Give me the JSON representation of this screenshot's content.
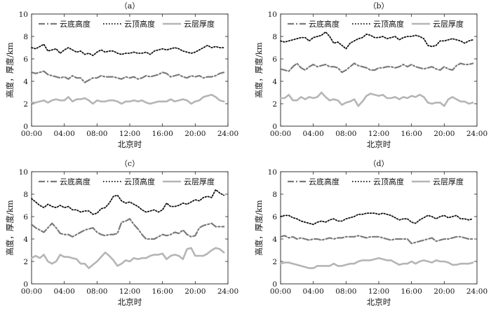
{
  "chart_data": [
    {
      "type": "line",
      "title": "（a）",
      "xlabel": "北京时",
      "ylabel": "高度，厚度/km",
      "ylim": [
        0,
        10
      ],
      "yticks": [
        "0",
        "2",
        "4",
        "6",
        "8",
        "10"
      ],
      "xlim": [
        "00:00",
        "24:00"
      ],
      "xticks": [
        "00:00",
        "04:00",
        "08:00",
        "12:00",
        "16:00",
        "20:00",
        "24:00"
      ],
      "grid": false,
      "legend_position": "top",
      "x": [
        "00:00",
        "00:30",
        "01:00",
        "01:30",
        "02:00",
        "02:30",
        "03:00",
        "03:30",
        "04:00",
        "04:30",
        "05:00",
        "05:30",
        "06:00",
        "06:30",
        "07:00",
        "07:30",
        "08:00",
        "08:30",
        "09:00",
        "09:30",
        "10:00",
        "10:30",
        "11:00",
        "11:30",
        "12:00",
        "12:30",
        "13:00",
        "13:30",
        "14:00",
        "14:30",
        "15:00",
        "15:30",
        "16:00",
        "16:30",
        "17:00",
        "17:30",
        "18:00",
        "18:30",
        "19:00",
        "19:30",
        "20:00",
        "20:30",
        "21:00",
        "21:30",
        "22:00",
        "22:30",
        "23:00",
        "23:30"
      ],
      "series": [
        {
          "name": "云底高度",
          "values": [
            4.8,
            4.7,
            4.8,
            4.9,
            4.6,
            4.5,
            4.4,
            4.3,
            4.4,
            4.2,
            4.5,
            4.3,
            4.3,
            3.9,
            4.1,
            4.3,
            4.3,
            4.5,
            4.4,
            4.4,
            4.4,
            4.3,
            4.2,
            4.4,
            4.3,
            4.4,
            4.2,
            4.3,
            4.5,
            4.4,
            4.5,
            4.6,
            4.8,
            4.7,
            4.4,
            4.5,
            4.6,
            4.4,
            4.3,
            4.5,
            4.4,
            4.5,
            4.3,
            4.4,
            4.4,
            4.5,
            4.7,
            4.8
          ]
        },
        {
          "name": "云顶高度",
          "values": [
            7.0,
            6.9,
            7.1,
            7.3,
            6.7,
            6.8,
            6.9,
            6.5,
            6.8,
            7.0,
            6.8,
            6.6,
            6.7,
            6.4,
            6.5,
            6.3,
            6.6,
            6.8,
            6.6,
            6.7,
            6.7,
            6.5,
            6.4,
            6.5,
            6.5,
            6.6,
            6.5,
            6.5,
            6.6,
            6.4,
            6.7,
            6.8,
            6.9,
            6.8,
            6.9,
            7.0,
            6.9,
            6.7,
            6.6,
            6.5,
            6.6,
            6.8,
            7.0,
            7.2,
            7.0,
            7.1,
            7.0,
            7.0
          ]
        },
        {
          "name": "云层厚度",
          "values": [
            2.1,
            2.1,
            2.2,
            2.3,
            2.1,
            2.3,
            2.4,
            2.3,
            2.3,
            2.6,
            2.2,
            2.4,
            2.4,
            2.5,
            2.3,
            2.0,
            2.3,
            2.2,
            2.2,
            2.3,
            2.3,
            2.2,
            2.0,
            2.2,
            2.2,
            2.3,
            2.2,
            2.3,
            2.1,
            2.0,
            2.1,
            2.2,
            2.2,
            2.2,
            2.4,
            2.2,
            2.3,
            2.4,
            2.3,
            2.0,
            2.2,
            2.3,
            2.6,
            2.7,
            2.8,
            2.6,
            2.3,
            2.2
          ]
        }
      ]
    },
    {
      "type": "line",
      "title": "（b）",
      "xlabel": "北京时",
      "ylabel": "高度，厚度/km",
      "ylim": [
        0,
        10
      ],
      "yticks": [
        "0",
        "2",
        "4",
        "6",
        "8",
        "10"
      ],
      "xlim": [
        "00:00",
        "24:00"
      ],
      "xticks": [
        "00:00",
        "04:00",
        "08:00",
        "12:00",
        "16:00",
        "20:00",
        "24:00"
      ],
      "grid": false,
      "legend_position": "top",
      "x": [
        "00:00",
        "00:30",
        "01:00",
        "01:30",
        "02:00",
        "02:30",
        "03:00",
        "03:30",
        "04:00",
        "04:30",
        "05:00",
        "05:30",
        "06:00",
        "06:30",
        "07:00",
        "07:30",
        "08:00",
        "08:30",
        "09:00",
        "09:30",
        "10:00",
        "10:30",
        "11:00",
        "11:30",
        "12:00",
        "12:30",
        "13:00",
        "13:30",
        "14:00",
        "14:30",
        "15:00",
        "15:30",
        "16:00",
        "16:30",
        "17:00",
        "17:30",
        "18:00",
        "18:30",
        "19:00",
        "19:30",
        "20:00",
        "20:30",
        "21:00",
        "21:30",
        "22:00",
        "22:30",
        "23:00",
        "23:30"
      ],
      "series": [
        {
          "name": "云底高度",
          "values": [
            5.1,
            5.0,
            4.9,
            5.3,
            5.6,
            5.2,
            5.0,
            5.3,
            5.5,
            5.3,
            5.4,
            5.5,
            5.3,
            5.3,
            5.2,
            4.8,
            5.0,
            5.3,
            5.6,
            5.4,
            5.3,
            5.2,
            5.0,
            5.0,
            5.2,
            5.2,
            5.3,
            5.3,
            5.2,
            5.3,
            5.5,
            5.3,
            5.5,
            5.3,
            5.2,
            5.1,
            5.2,
            5.3,
            5.1,
            5.0,
            5.3,
            5.1,
            5.0,
            5.4,
            5.6,
            5.5,
            5.5,
            5.6
          ]
        },
        {
          "name": "云顶高度",
          "values": [
            7.6,
            7.5,
            7.6,
            7.7,
            7.8,
            7.9,
            7.9,
            7.6,
            7.9,
            8.0,
            8.1,
            8.4,
            8.0,
            7.4,
            7.5,
            7.2,
            6.9,
            7.4,
            7.6,
            7.8,
            7.9,
            8.2,
            8.1,
            7.9,
            7.9,
            8.0,
            7.8,
            7.9,
            8.0,
            7.7,
            7.9,
            8.0,
            8.0,
            8.1,
            8.0,
            7.8,
            7.2,
            7.1,
            7.2,
            7.6,
            7.6,
            7.7,
            7.8,
            7.7,
            7.6,
            7.4,
            7.6,
            7.7
          ]
        },
        {
          "name": "云层厚度",
          "values": [
            2.5,
            2.5,
            2.8,
            2.3,
            2.3,
            2.6,
            2.4,
            2.6,
            2.5,
            2.6,
            3.0,
            2.6,
            2.3,
            2.4,
            2.3,
            1.9,
            2.1,
            2.2,
            2.4,
            1.8,
            2.2,
            2.7,
            2.9,
            2.8,
            2.7,
            2.8,
            2.5,
            2.5,
            2.6,
            2.4,
            2.6,
            2.5,
            2.7,
            2.6,
            2.8,
            2.6,
            2.1,
            2.0,
            2.1,
            2.1,
            1.8,
            2.4,
            2.6,
            2.4,
            2.2,
            2.2,
            2.0,
            2.1
          ]
        }
      ]
    },
    {
      "type": "line",
      "title": "（c）",
      "xlabel": "北京时",
      "ylabel": "高度，厚度/km",
      "ylim": [
        0,
        10
      ],
      "yticks": [
        "0",
        "2",
        "4",
        "6",
        "8",
        "10"
      ],
      "xlim": [
        "00:00",
        "24:00"
      ],
      "xticks": [
        "00:00",
        "04:00",
        "08:00",
        "12:00",
        "16:00",
        "20:00",
        "24:00"
      ],
      "grid": false,
      "legend_position": "top",
      "x": [
        "00:00",
        "00:30",
        "01:00",
        "01:30",
        "02:00",
        "02:30",
        "03:00",
        "03:30",
        "04:00",
        "04:30",
        "05:00",
        "05:30",
        "06:00",
        "06:30",
        "07:00",
        "07:30",
        "08:00",
        "08:30",
        "09:00",
        "09:30",
        "10:00",
        "10:30",
        "11:00",
        "11:30",
        "12:00",
        "12:30",
        "13:00",
        "13:30",
        "14:00",
        "14:30",
        "15:00",
        "15:30",
        "16:00",
        "16:30",
        "17:00",
        "17:30",
        "18:00",
        "18:30",
        "19:00",
        "19:30",
        "20:00",
        "20:30",
        "21:00",
        "21:30",
        "22:00",
        "22:30",
        "23:00",
        "23:30"
      ],
      "series": [
        {
          "name": "云底高度",
          "values": [
            5.3,
            5.0,
            4.8,
            4.6,
            5.0,
            5.4,
            5.0,
            4.5,
            4.4,
            4.4,
            4.2,
            4.4,
            4.6,
            4.8,
            4.9,
            5.0,
            4.6,
            4.4,
            4.3,
            4.4,
            4.4,
            4.5,
            5.5,
            5.6,
            5.8,
            5.3,
            4.9,
            4.4,
            4.0,
            4.0,
            4.0,
            4.2,
            4.4,
            4.3,
            4.4,
            4.6,
            4.5,
            4.8,
            4.4,
            4.2,
            4.3,
            5.0,
            5.2,
            5.3,
            5.4,
            5.1,
            5.1,
            5.1
          ]
        },
        {
          "name": "云顶高度",
          "values": [
            7.6,
            7.3,
            7.0,
            6.8,
            7.1,
            6.9,
            6.8,
            7.0,
            6.8,
            6.9,
            6.6,
            6.6,
            6.4,
            6.5,
            6.5,
            6.2,
            6.3,
            6.7,
            6.8,
            7.2,
            7.8,
            7.9,
            7.4,
            7.2,
            7.3,
            7.1,
            6.9,
            6.6,
            6.4,
            6.5,
            6.6,
            6.4,
            6.6,
            7.2,
            6.9,
            6.9,
            7.0,
            7.2,
            7.1,
            7.3,
            7.5,
            7.4,
            7.7,
            7.8,
            7.7,
            8.4,
            8.1,
            7.9
          ]
        },
        {
          "name": "云层厚度",
          "values": [
            2.3,
            2.5,
            2.3,
            2.6,
            2.0,
            1.8,
            2.0,
            2.6,
            2.4,
            2.4,
            2.3,
            2.2,
            1.8,
            1.8,
            1.4,
            1.7,
            2.0,
            2.4,
            2.8,
            2.5,
            2.1,
            1.6,
            1.8,
            2.1,
            2.0,
            2.3,
            2.2,
            2.3,
            2.3,
            2.5,
            2.6,
            2.6,
            2.7,
            2.2,
            2.5,
            2.6,
            2.5,
            2.2,
            3.1,
            3.2,
            2.5,
            2.5,
            2.5,
            2.7,
            3.0,
            3.2,
            3.1,
            2.8
          ]
        }
      ]
    },
    {
      "type": "line",
      "title": "（d）",
      "xlabel": "北京时",
      "ylabel": "高度，厚度/km",
      "ylim": [
        0,
        10
      ],
      "yticks": [
        "0",
        "2",
        "4",
        "6",
        "8",
        "10"
      ],
      "xlim": [
        "00:00",
        "24:00"
      ],
      "xticks": [
        "00:00",
        "04:00",
        "08:00",
        "12:00",
        "16:00",
        "20:00",
        "24:00"
      ],
      "grid": false,
      "legend_position": "top",
      "x": [
        "00:00",
        "00:30",
        "01:00",
        "01:30",
        "02:00",
        "02:30",
        "03:00",
        "03:30",
        "04:00",
        "04:30",
        "05:00",
        "05:30",
        "06:00",
        "06:30",
        "07:00",
        "07:30",
        "08:00",
        "08:30",
        "09:00",
        "09:30",
        "10:00",
        "10:30",
        "11:00",
        "11:30",
        "12:00",
        "12:30",
        "13:00",
        "13:30",
        "14:00",
        "14:30",
        "15:00",
        "15:30",
        "16:00",
        "16:30",
        "17:00",
        "17:30",
        "18:00",
        "18:30",
        "19:00",
        "19:30",
        "20:00",
        "20:30",
        "21:00",
        "21:30",
        "22:00",
        "22:30",
        "23:00",
        "23:30"
      ],
      "series": [
        {
          "name": "云底高度",
          "values": [
            4.2,
            4.3,
            4.1,
            4.2,
            4.0,
            4.1,
            4.0,
            3.9,
            4.0,
            4.0,
            3.9,
            4.0,
            4.1,
            4.0,
            4.1,
            4.1,
            4.2,
            4.2,
            4.2,
            4.3,
            4.2,
            4.1,
            4.2,
            4.2,
            4.2,
            4.1,
            4.0,
            3.9,
            4.0,
            4.0,
            4.0,
            4.0,
            3.6,
            3.7,
            3.8,
            3.9,
            4.0,
            4.1,
            3.8,
            3.9,
            4.0,
            4.0,
            4.1,
            4.2,
            4.2,
            4.1,
            4.0,
            4.0
          ]
        },
        {
          "name": "云顶高度",
          "values": [
            6.0,
            6.1,
            6.1,
            5.9,
            5.8,
            5.6,
            5.5,
            5.4,
            5.3,
            5.5,
            5.6,
            5.5,
            5.7,
            5.8,
            5.6,
            5.6,
            5.8,
            5.9,
            6.0,
            6.2,
            6.2,
            6.3,
            6.3,
            6.3,
            6.2,
            6.3,
            6.2,
            6.1,
            5.9,
            5.7,
            5.8,
            5.8,
            5.5,
            5.4,
            5.7,
            5.9,
            6.1,
            6.0,
            5.8,
            6.0,
            6.1,
            5.9,
            6.0,
            6.1,
            5.8,
            5.8,
            5.7,
            5.8
          ]
        },
        {
          "name": "云层厚度",
          "values": [
            1.8,
            1.9,
            1.9,
            1.8,
            1.7,
            1.6,
            1.5,
            1.4,
            1.4,
            1.6,
            1.6,
            1.6,
            1.6,
            1.8,
            1.6,
            1.6,
            1.7,
            1.8,
            1.8,
            2.0,
            2.1,
            2.1,
            2.1,
            2.2,
            2.3,
            2.2,
            2.1,
            2.1,
            1.9,
            1.7,
            1.8,
            1.8,
            2.0,
            1.8,
            2.0,
            2.1,
            2.0,
            1.9,
            2.1,
            2.0,
            2.0,
            1.9,
            1.7,
            1.7,
            1.8,
            1.8,
            1.8,
            1.9
          ]
        }
      ]
    }
  ]
}
